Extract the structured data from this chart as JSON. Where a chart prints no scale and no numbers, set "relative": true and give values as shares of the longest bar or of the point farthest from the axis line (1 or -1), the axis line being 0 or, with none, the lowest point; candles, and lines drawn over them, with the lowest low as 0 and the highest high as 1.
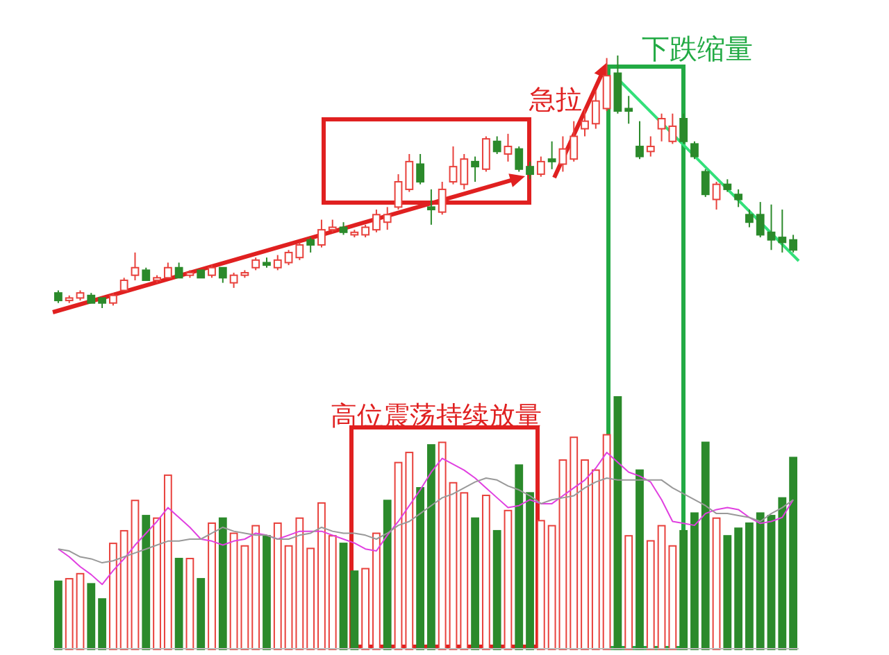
{
  "chart_data": [
    {
      "type": "candlestick",
      "relative": true,
      "categories": [
        null,
        null,
        null,
        null,
        null,
        null,
        null,
        null,
        null,
        null,
        null,
        null,
        null,
        null,
        null,
        null,
        null,
        null,
        null,
        null,
        null,
        null,
        null,
        null,
        null,
        null,
        null,
        null,
        null,
        null,
        null,
        null,
        null,
        null,
        null,
        null,
        null,
        null,
        null,
        null,
        null,
        null,
        null,
        null,
        null,
        null,
        null,
        null,
        null,
        null,
        null,
        null,
        null,
        null,
        null,
        null,
        null,
        null,
        null,
        null,
        null,
        null,
        null,
        null,
        null,
        null,
        null,
        null
      ],
      "ohlc": [
        [
          0.06,
          0.07,
          0.02,
          0.03
        ],
        [
          0.03,
          0.05,
          0.02,
          0.04
        ],
        [
          0.04,
          0.07,
          0.03,
          0.06
        ],
        [
          0.05,
          0.06,
          0.02,
          0.02
        ],
        [
          0.04,
          0.04,
          0,
          0.02
        ],
        [
          0.02,
          0.06,
          0.01,
          0.05
        ],
        [
          0.07,
          0.12,
          0.07,
          0.11
        ],
        [
          0.13,
          0.22,
          0.11,
          0.16
        ],
        [
          0.15,
          0.16,
          0.11,
          0.11
        ],
        [
          0.11,
          0.13,
          0.1,
          0.12
        ],
        [
          0.12,
          0.18,
          0.12,
          0.16
        ],
        [
          0.16,
          0.18,
          0.12,
          0.12
        ],
        [
          0.13,
          0.15,
          0.12,
          0.14
        ],
        [
          0.15,
          0.15,
          0.12,
          0.12
        ],
        [
          0.13,
          0.17,
          0.12,
          0.16
        ],
        [
          0.16,
          0.16,
          0.1,
          0.12
        ],
        [
          0.1,
          0.14,
          0.08,
          0.13
        ],
        [
          0.13,
          0.15,
          0.12,
          0.14
        ],
        [
          0.16,
          0.2,
          0.15,
          0.19
        ],
        [
          0.18,
          0.2,
          0.16,
          0.17
        ],
        [
          0.16,
          0.21,
          0.15,
          0.19
        ],
        [
          0.18,
          0.23,
          0.17,
          0.22
        ],
        [
          0.2,
          0.26,
          0.19,
          0.25
        ],
        [
          0.27,
          0.28,
          0.22,
          0.25
        ],
        [
          0.25,
          0.35,
          0.24,
          0.31
        ],
        [
          0.31,
          0.35,
          0.3,
          0.32
        ],
        [
          0.32,
          0.34,
          0.29,
          0.3
        ],
        [
          0.29,
          0.31,
          0.28,
          0.3
        ],
        [
          0.29,
          0.33,
          0.28,
          0.32
        ],
        [
          0.31,
          0.39,
          0.3,
          0.37
        ],
        [
          0.34,
          0.4,
          0.31,
          0.37
        ],
        [
          0.4,
          0.53,
          0.39,
          0.5
        ],
        [
          0.47,
          0.61,
          0.46,
          0.58
        ],
        [
          0.57,
          0.61,
          0.49,
          0.5
        ],
        [
          0.4,
          0.47,
          0.33,
          0.39
        ],
        [
          0.38,
          0.5,
          0.37,
          0.47
        ],
        [
          0.5,
          0.64,
          0.49,
          0.56
        ],
        [
          0.49,
          0.61,
          0.47,
          0.59
        ],
        [
          0.58,
          0.6,
          0.5,
          0.56
        ],
        [
          0.55,
          0.68,
          0.54,
          0.67
        ],
        [
          0.66,
          0.68,
          0.61,
          0.62
        ],
        [
          0.61,
          0.69,
          0.58,
          0.64
        ],
        [
          0.63,
          0.64,
          0.54,
          0.55
        ],
        [
          0.56,
          0.58,
          0.51,
          0.53
        ],
        [
          0.53,
          0.6,
          0.52,
          0.58
        ],
        [
          0.59,
          0.66,
          0.55,
          0.58
        ],
        [
          0.57,
          0.68,
          0.54,
          0.63
        ],
        [
          0.59,
          0.74,
          0.58,
          0.68
        ],
        [
          0.71,
          0.79,
          0.68,
          0.74
        ],
        [
          0.73,
          0.86,
          0.71,
          0.82
        ],
        [
          0.79,
          0.99,
          0.78,
          0.92
        ],
        [
          0.93,
          1,
          0.77,
          0.78
        ],
        [
          0.79,
          0.84,
          0.73,
          0.78
        ],
        [
          0.64,
          0.74,
          0.59,
          0.6
        ],
        [
          0.62,
          0.68,
          0.6,
          0.64
        ],
        [
          0.71,
          0.77,
          0.66,
          0.75
        ],
        [
          0.66,
          0.77,
          0.65,
          0.72
        ],
        [
          0.75,
          0.77,
          0.65,
          0.66
        ],
        [
          0.65,
          0.66,
          0.59,
          0.6
        ],
        [
          0.54,
          0.55,
          0.44,
          0.45
        ],
        [
          0.43,
          0.5,
          0.39,
          0.49
        ],
        [
          0.49,
          0.51,
          0.46,
          0.47
        ],
        [
          0.45,
          0.47,
          0.4,
          0.43
        ],
        [
          0.37,
          0.39,
          0.32,
          0.34
        ],
        [
          0.37,
          0.42,
          0.28,
          0.29
        ],
        [
          0.3,
          0.41,
          0.23,
          0.27
        ],
        [
          0.28,
          0.39,
          0.22,
          0.26
        ],
        [
          0.27,
          0.29,
          0.22,
          0.23
        ]
      ],
      "colors": [
        "#2b8a2b",
        "#e8413c",
        "#e8413c",
        "#2b8a2b",
        "#2b8a2b",
        "#e8413c",
        "#e8413c",
        "#e8413c",
        "#2b8a2b",
        "#e8413c",
        "#e8413c",
        "#2b8a2b",
        "#e8413c",
        "#2b8a2b",
        "#e8413c",
        "#2b8a2b",
        "#e8413c",
        "#e8413c",
        "#e8413c",
        "#2b8a2b",
        "#e8413c",
        "#e8413c",
        "#e8413c",
        "#2b8a2b",
        "#e8413c",
        "#e8413c",
        "#2b8a2b",
        "#e8413c",
        "#e8413c",
        "#e8413c",
        "#e8413c",
        "#e8413c",
        "#e8413c",
        "#2b8a2b",
        "#2b8a2b",
        "#e8413c",
        "#e8413c",
        "#e8413c",
        "#2b8a2b",
        "#e8413c",
        "#2b8a2b",
        "#e8413c",
        "#2b8a2b",
        "#2b8a2b",
        "#e8413c",
        "#2b8a2b",
        "#e8413c",
        "#e8413c",
        "#e8413c",
        "#e8413c",
        "#e8413c",
        "#2b8a2b",
        "#2b8a2b",
        "#2b8a2b",
        "#e8413c",
        "#e8413c",
        "#e8413c",
        "#2b8a2b",
        "#2b8a2b",
        "#2b8a2b",
        "#e8413c",
        "#2b8a2b",
        "#2b8a2b",
        "#2b8a2b",
        "#2b8a2b",
        "#2b8a2b",
        "#2b8a2b",
        "#2b8a2b"
      ],
      "annotations": [
        "急拉",
        "下跌缩量"
      ]
    },
    {
      "type": "bar",
      "relative": true,
      "categories": [
        null,
        null,
        null,
        null,
        null,
        null,
        null,
        null,
        null,
        null,
        null,
        null,
        null,
        null,
        null,
        null,
        null,
        null,
        null,
        null,
        null,
        null,
        null,
        null,
        null,
        null,
        null,
        null,
        null,
        null,
        null,
        null,
        null,
        null,
        null,
        null,
        null,
        null,
        null,
        null,
        null,
        null,
        null,
        null,
        null,
        null,
        null,
        null,
        null,
        null,
        null,
        null,
        null,
        null,
        null,
        null,
        null,
        null,
        null,
        null,
        null,
        null,
        null,
        null,
        null,
        null,
        null,
        null
      ],
      "values": [
        0.27,
        0.28,
        0.3,
        0.26,
        0.2,
        0.42,
        0.47,
        0.59,
        0.53,
        0.52,
        0.69,
        0.36,
        0.36,
        0.28,
        0.5,
        0.52,
        0.46,
        0.41,
        0.49,
        0.45,
        0.5,
        0.41,
        0.52,
        0.4,
        0.58,
        0.45,
        0.42,
        0.31,
        0.32,
        0.46,
        0.59,
        0.74,
        0.78,
        0.64,
        0.81,
        0.82,
        0.66,
        0.62,
        0.52,
        0.61,
        0.47,
        0.55,
        0.73,
        0.62,
        0.51,
        0.49,
        0.75,
        0.84,
        0.75,
        0.71,
        0.85,
        1,
        0.45,
        0.71,
        0.43,
        0.49,
        0.41,
        0.47,
        0.54,
        0.82,
        0.52,
        0.45,
        0.48,
        0.5,
        0.54,
        0.53,
        0.6,
        0.76
      ],
      "annotations": [
        "高位震荡持续放量"
      ],
      "colors": [
        "#2b8a2b",
        "#e8413c",
        "#e8413c",
        "#2b8a2b",
        "#2b8a2b",
        "#e8413c",
        "#e8413c",
        "#e8413c",
        "#2b8a2b",
        "#e8413c",
        "#e8413c",
        "#2b8a2b",
        "#e8413c",
        "#2b8a2b",
        "#e8413c",
        "#2b8a2b",
        "#e8413c",
        "#e8413c",
        "#e8413c",
        "#2b8a2b",
        "#e8413c",
        "#e8413c",
        "#e8413c",
        "#e8413c",
        "#e8413c",
        "#e8413c",
        "#2b8a2b",
        "#2b8a2b",
        "#e8413c",
        "#e8413c",
        "#2b8a2b",
        "#e8413c",
        "#e8413c",
        "#2b8a2b",
        "#2b8a2b",
        "#e8413c",
        "#e8413c",
        "#e8413c",
        "#2b8a2b",
        "#e8413c",
        "#2b8a2b",
        "#e8413c",
        "#2b8a2b",
        "#2b8a2b",
        "#e8413c",
        "#e8413c",
        "#e8413c",
        "#e8413c",
        "#e8413c",
        "#e8413c",
        "#e8413c",
        "#2b8a2b",
        "#e8413c",
        "#2b8a2b",
        "#e8413c",
        "#e8413c",
        "#e8413c",
        "#2b8a2b",
        "#2b8a2b",
        "#2b8a2b",
        "#e8413c",
        "#2b8a2b",
        "#2b8a2b",
        "#2b8a2b",
        "#2b8a2b",
        "#2b8a2b",
        "#2b8a2b",
        "#2b8a2b"
      ]
    },
    {
      "type": "line",
      "relative": true,
      "categories": [
        null,
        null,
        null,
        null,
        null,
        null,
        null,
        null,
        null,
        null,
        null,
        null,
        null,
        null,
        null,
        null,
        null,
        null,
        null,
        null,
        null,
        null,
        null,
        null,
        null,
        null,
        null,
        null,
        null,
        null,
        null,
        null,
        null,
        null,
        null,
        null,
        null,
        null,
        null,
        null,
        null,
        null,
        null,
        null,
        null,
        null,
        null,
        null,
        null,
        null,
        null,
        null,
        null,
        null,
        null,
        null,
        null,
        null,
        null,
        null,
        null,
        null,
        null,
        null,
        null,
        null,
        null,
        null
      ],
      "series": [
        {
          "color": "#e040e0",
          "values": [
            0.51,
            0.47,
            0.42,
            0.38,
            0.33,
            0.4,
            0.46,
            0.53,
            0.59,
            0.65,
            0.72,
            0.67,
            0.62,
            0.56,
            0.55,
            0.53,
            0.55,
            0.56,
            0.59,
            0.58,
            0.56,
            0.58,
            0.6,
            0.6,
            0.6,
            0.58,
            0.56,
            0.54,
            0.51,
            0.5,
            0.58,
            0.65,
            0.73,
            0.81,
            0.9,
            0.97,
            0.94,
            0.91,
            0.87,
            0.82,
            0.77,
            0.72,
            0.73,
            0.76,
            0.74,
            0.74,
            0.78,
            0.82,
            0.86,
            0.92,
            1,
            0.95,
            0.9,
            0.88,
            0.85,
            0.76,
            0.65,
            0.64,
            0.63,
            0.69,
            0.71,
            0.72,
            0.71,
            0.67,
            0.64,
            0.65,
            0.67,
            0.76
          ]
        },
        {
          "color": "#999999",
          "values": [
            0.51,
            0.5,
            0.47,
            0.46,
            0.44,
            0.45,
            0.47,
            0.49,
            0.51,
            0.53,
            0.55,
            0.55,
            0.56,
            0.56,
            0.59,
            0.62,
            0.6,
            0.59,
            0.58,
            0.58,
            0.56,
            0.56,
            0.58,
            0.59,
            0.62,
            0.6,
            0.59,
            0.59,
            0.58,
            0.56,
            0.59,
            0.63,
            0.65,
            0.69,
            0.73,
            0.77,
            0.79,
            0.82,
            0.85,
            0.87,
            0.86,
            0.83,
            0.81,
            0.78,
            0.74,
            0.76,
            0.77,
            0.78,
            0.82,
            0.85,
            0.87,
            0.86,
            0.86,
            0.86,
            0.86,
            0.86,
            0.82,
            0.79,
            0.76,
            0.73,
            0.69,
            0.69,
            0.68,
            0.67,
            0.65,
            0.69,
            0.72,
            0.76
          ]
        }
      ]
    }
  ]
}
